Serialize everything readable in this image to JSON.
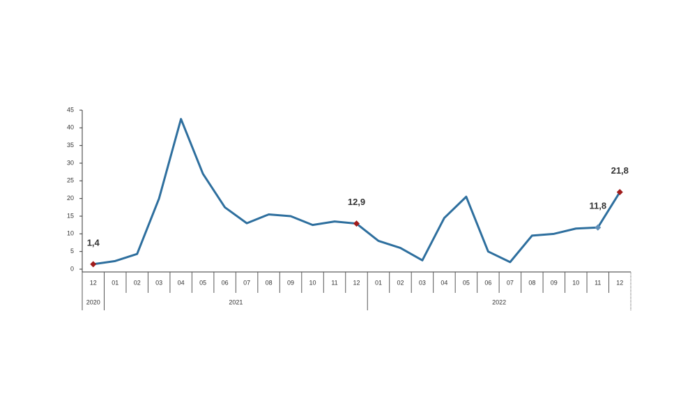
{
  "chart_data": {
    "type": "line",
    "categories": [
      "12",
      "01",
      "02",
      "03",
      "04",
      "05",
      "06",
      "07",
      "08",
      "09",
      "10",
      "11",
      "12",
      "01",
      "02",
      "03",
      "04",
      "05",
      "06",
      "07",
      "08",
      "09",
      "10",
      "11",
      "12"
    ],
    "years": [
      "2020",
      "2021",
      "2022"
    ],
    "series": [
      {
        "color": "#2e6f9e",
        "values": [
          1.4,
          2.3,
          4.3,
          20,
          42.5,
          27,
          17.5,
          13,
          15.5,
          15,
          12.5,
          13.5,
          12.9,
          8,
          6,
          2.5,
          14.5,
          20.5,
          5,
          2,
          9.5,
          10,
          11.5,
          11.8,
          21.8
        ],
        "value_labels": [
          "1,4",
          null,
          null,
          null,
          null,
          null,
          null,
          null,
          null,
          null,
          null,
          null,
          "12,9",
          null,
          null,
          null,
          null,
          null,
          null,
          null,
          null,
          null,
          null,
          "11,8",
          "21,8"
        ],
        "marker_colors": [
          "#a01c1c",
          null,
          null,
          null,
          null,
          null,
          null,
          null,
          null,
          null,
          null,
          null,
          "#a01c1c",
          null,
          null,
          null,
          null,
          null,
          null,
          null,
          null,
          null,
          null,
          "#5f8fb8",
          "#a01c1c"
        ]
      }
    ],
    "ylim": [
      0,
      45
    ],
    "yticks": [
      0,
      5,
      10,
      15,
      20,
      25,
      30,
      35,
      40,
      45
    ],
    "grid": false
  }
}
